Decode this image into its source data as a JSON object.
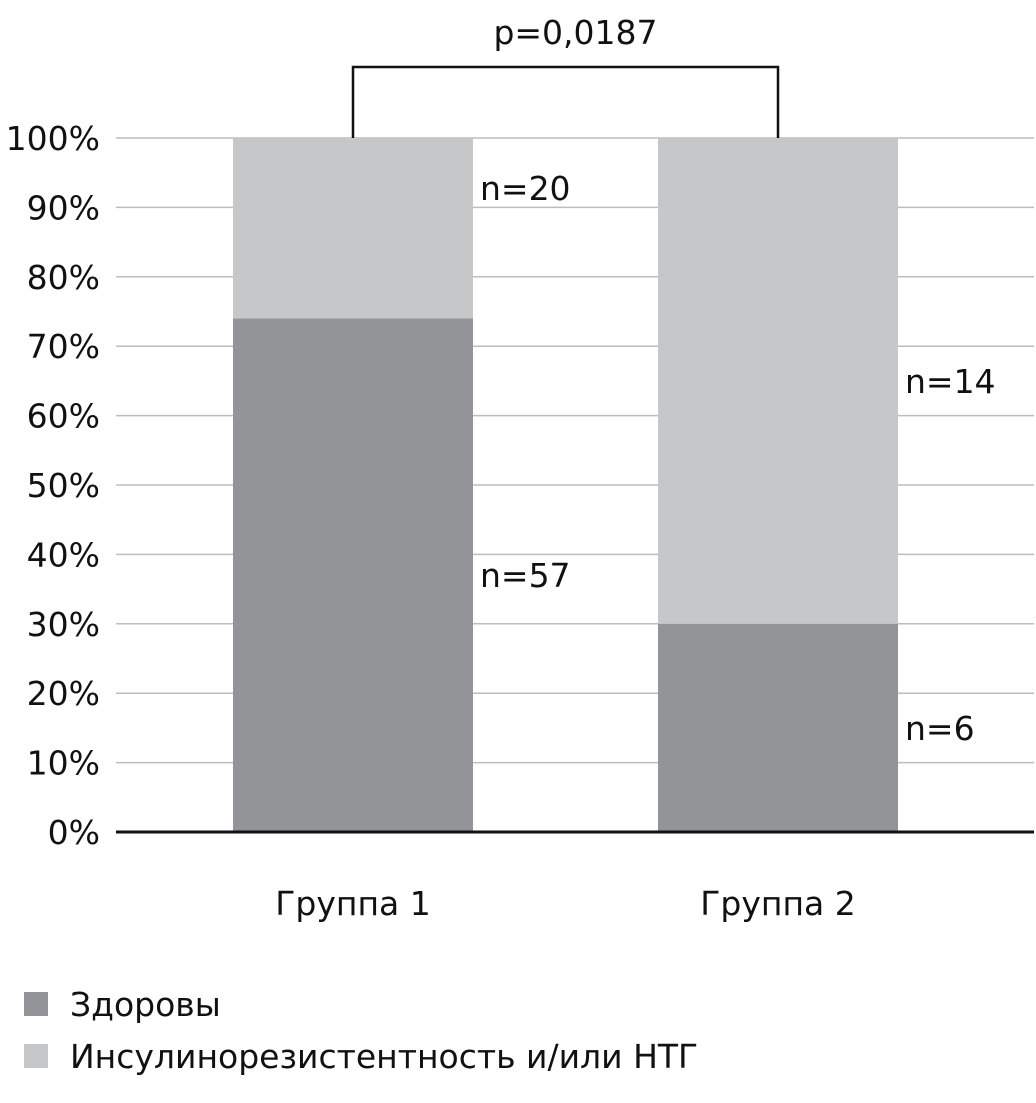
{
  "chart_data": {
    "type": "bar",
    "stacked": true,
    "categories": [
      "Группа 1",
      "Группа 2"
    ],
    "series": [
      {
        "name": "Здоровы",
        "values": [
          74,
          30
        ],
        "counts": [
          "n=57",
          "n=6"
        ],
        "color": "#939497"
      },
      {
        "name": "Инсулинорезистентность и/или НТГ",
        "values": [
          26,
          70
        ],
        "counts": [
          "n=20",
          "n=14"
        ],
        "color": "#c6c7c9"
      }
    ],
    "ylim": [
      0,
      100
    ],
    "yticks": [
      "0%",
      "10%",
      "20%",
      "30%",
      "40%",
      "50%",
      "60%",
      "70%",
      "80%",
      "90%",
      "100%"
    ],
    "grid": true,
    "annotation": "p=0,0187",
    "legend_position": "bottom-left"
  }
}
